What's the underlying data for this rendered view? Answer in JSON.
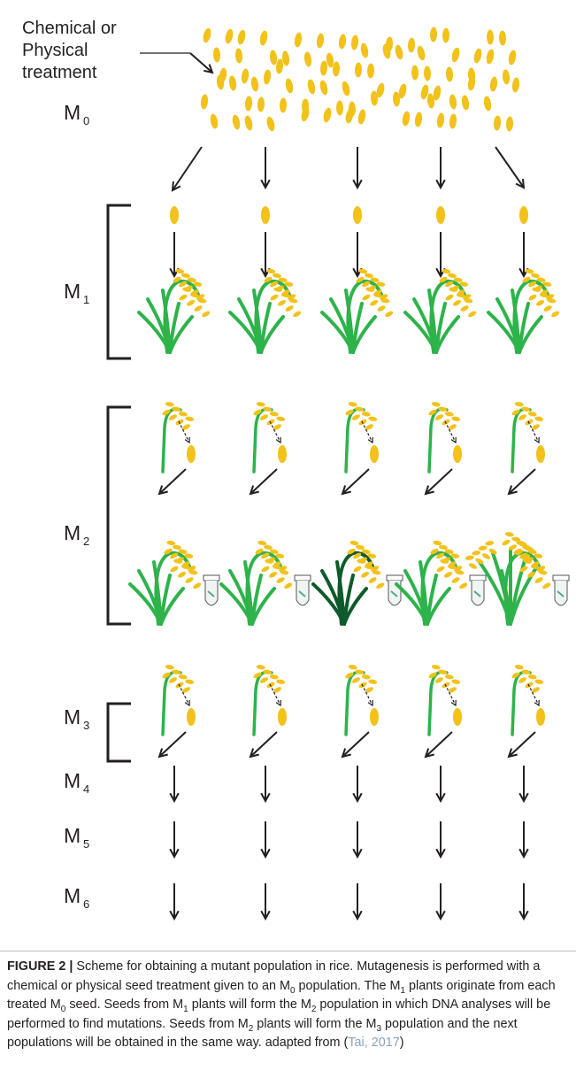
{
  "treatment_label": [
    "Chemical or",
    "Physical",
    "treatment"
  ],
  "generations": [
    {
      "letter": "M",
      "subscript": "0"
    },
    {
      "letter": "M",
      "subscript": "1"
    },
    {
      "letter": "M",
      "subscript": "2"
    },
    {
      "letter": "M",
      "subscript": "3"
    },
    {
      "letter": "M",
      "subscript": "4"
    },
    {
      "letter": "M",
      "subscript": "5"
    },
    {
      "letter": "M",
      "subscript": "6"
    }
  ],
  "caption": {
    "label": "FIGURE 2 |",
    "segments": [
      {
        "text": " Scheme for obtaining a mutant population in rice. Mutagenesis is performed with a chemical or physical seed treatment given to an M"
      },
      {
        "sub": "0"
      },
      {
        "text": " population. The M"
      },
      {
        "sub": "1"
      },
      {
        "text": " plants originate from each treated M"
      },
      {
        "sub": "0"
      },
      {
        "text": " seed. Seeds from M"
      },
      {
        "sub": "1"
      },
      {
        "text": " plants will form the M"
      },
      {
        "sub": "2"
      },
      {
        "text": " population in which DNA analyses will be performed to find mutations. Seeds from M"
      },
      {
        "sub": "2"
      },
      {
        "text": " plants will form the M"
      },
      {
        "sub": "3"
      },
      {
        "text": " population and the next populations will be obtained in the same way. adapted from ("
      },
      {
        "cite": "Tai, 2017"
      },
      {
        "text": ")"
      }
    ]
  }
}
